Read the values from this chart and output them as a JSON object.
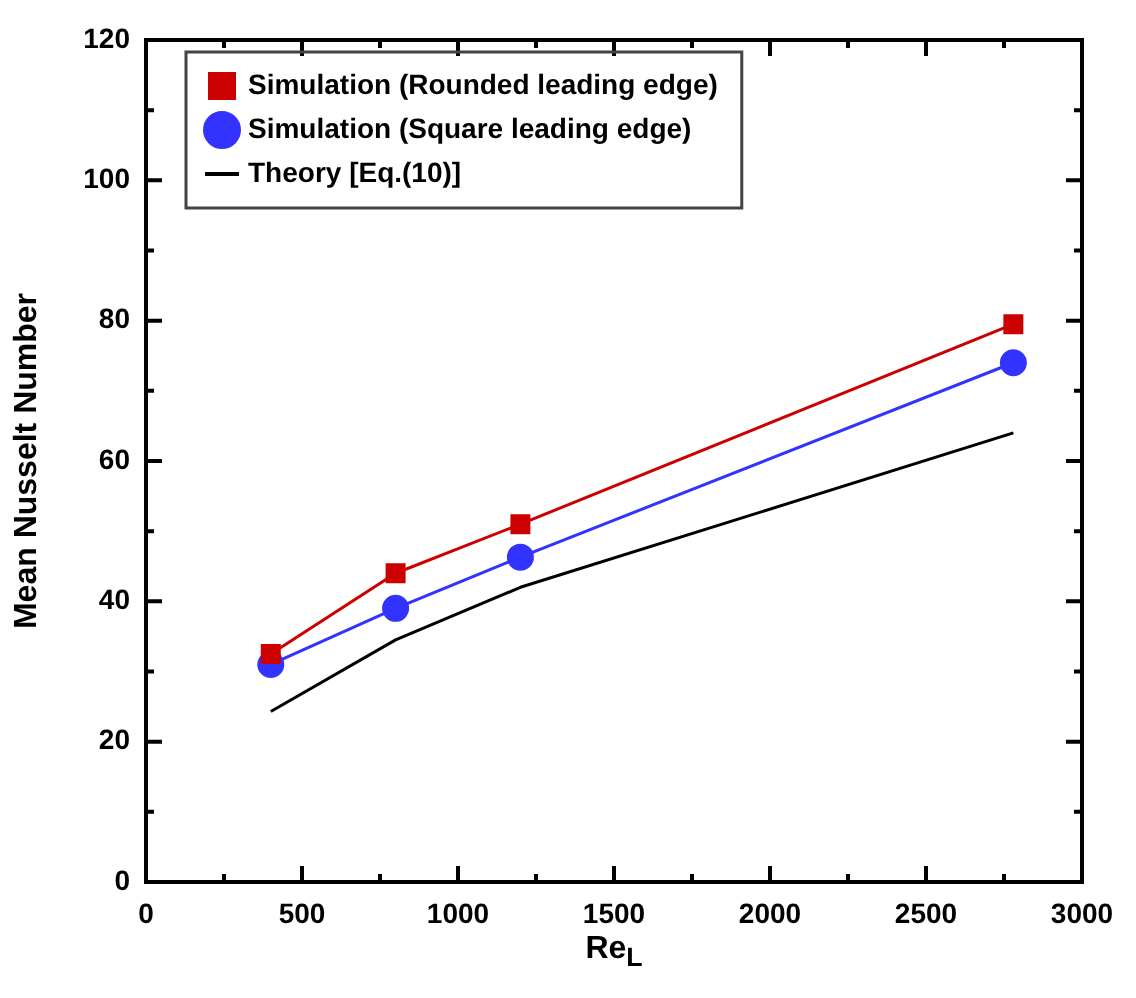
{
  "chart_data": {
    "type": "line",
    "xlabel": "Re$_{L}$",
    "ylabel": "Mean Nusselt Number",
    "x": [
      400,
      800,
      1200,
      2780
    ],
    "series": [
      {
        "name": "Simulation (Rounded leading edge)",
        "color": "#cc0000",
        "marker": "square",
        "values": [
          32.5,
          44,
          51,
          79.5
        ]
      },
      {
        "name": "Simulation (Square leading edge)",
        "color": "#3333ff",
        "marker": "circle",
        "values": [
          31,
          39,
          46.3,
          74
        ]
      },
      {
        "name": "Theory [Eq.(10)]",
        "color": "#000000",
        "marker": "none",
        "values": [
          24.3,
          34.5,
          42,
          64
        ]
      }
    ],
    "xlim": [
      0,
      3000
    ],
    "ylim": [
      0,
      120
    ],
    "xticks": [
      0,
      {
        "value": 250,
        "label": null
      },
      500,
      {
        "value": 750,
        "label": null
      },
      1000,
      {
        "value": 1250,
        "label": null
      },
      1500,
      {
        "value": 1750,
        "label": null
      },
      2000,
      {
        "value": 2250,
        "label": null
      },
      2500,
      {
        "value": 2750,
        "label": null
      },
      3000
    ],
    "yticks": [
      0,
      {
        "value": 10,
        "label": null
      },
      20,
      {
        "value": 30,
        "label": null
      },
      40,
      {
        "value": 50,
        "label": null
      },
      60,
      {
        "value": 70,
        "label": null
      },
      80,
      {
        "value": 90,
        "label": null
      },
      100,
      {
        "value": 110,
        "label": null
      },
      120
    ],
    "grid": false,
    "legend": "top left",
    "line_style": "solid"
  }
}
